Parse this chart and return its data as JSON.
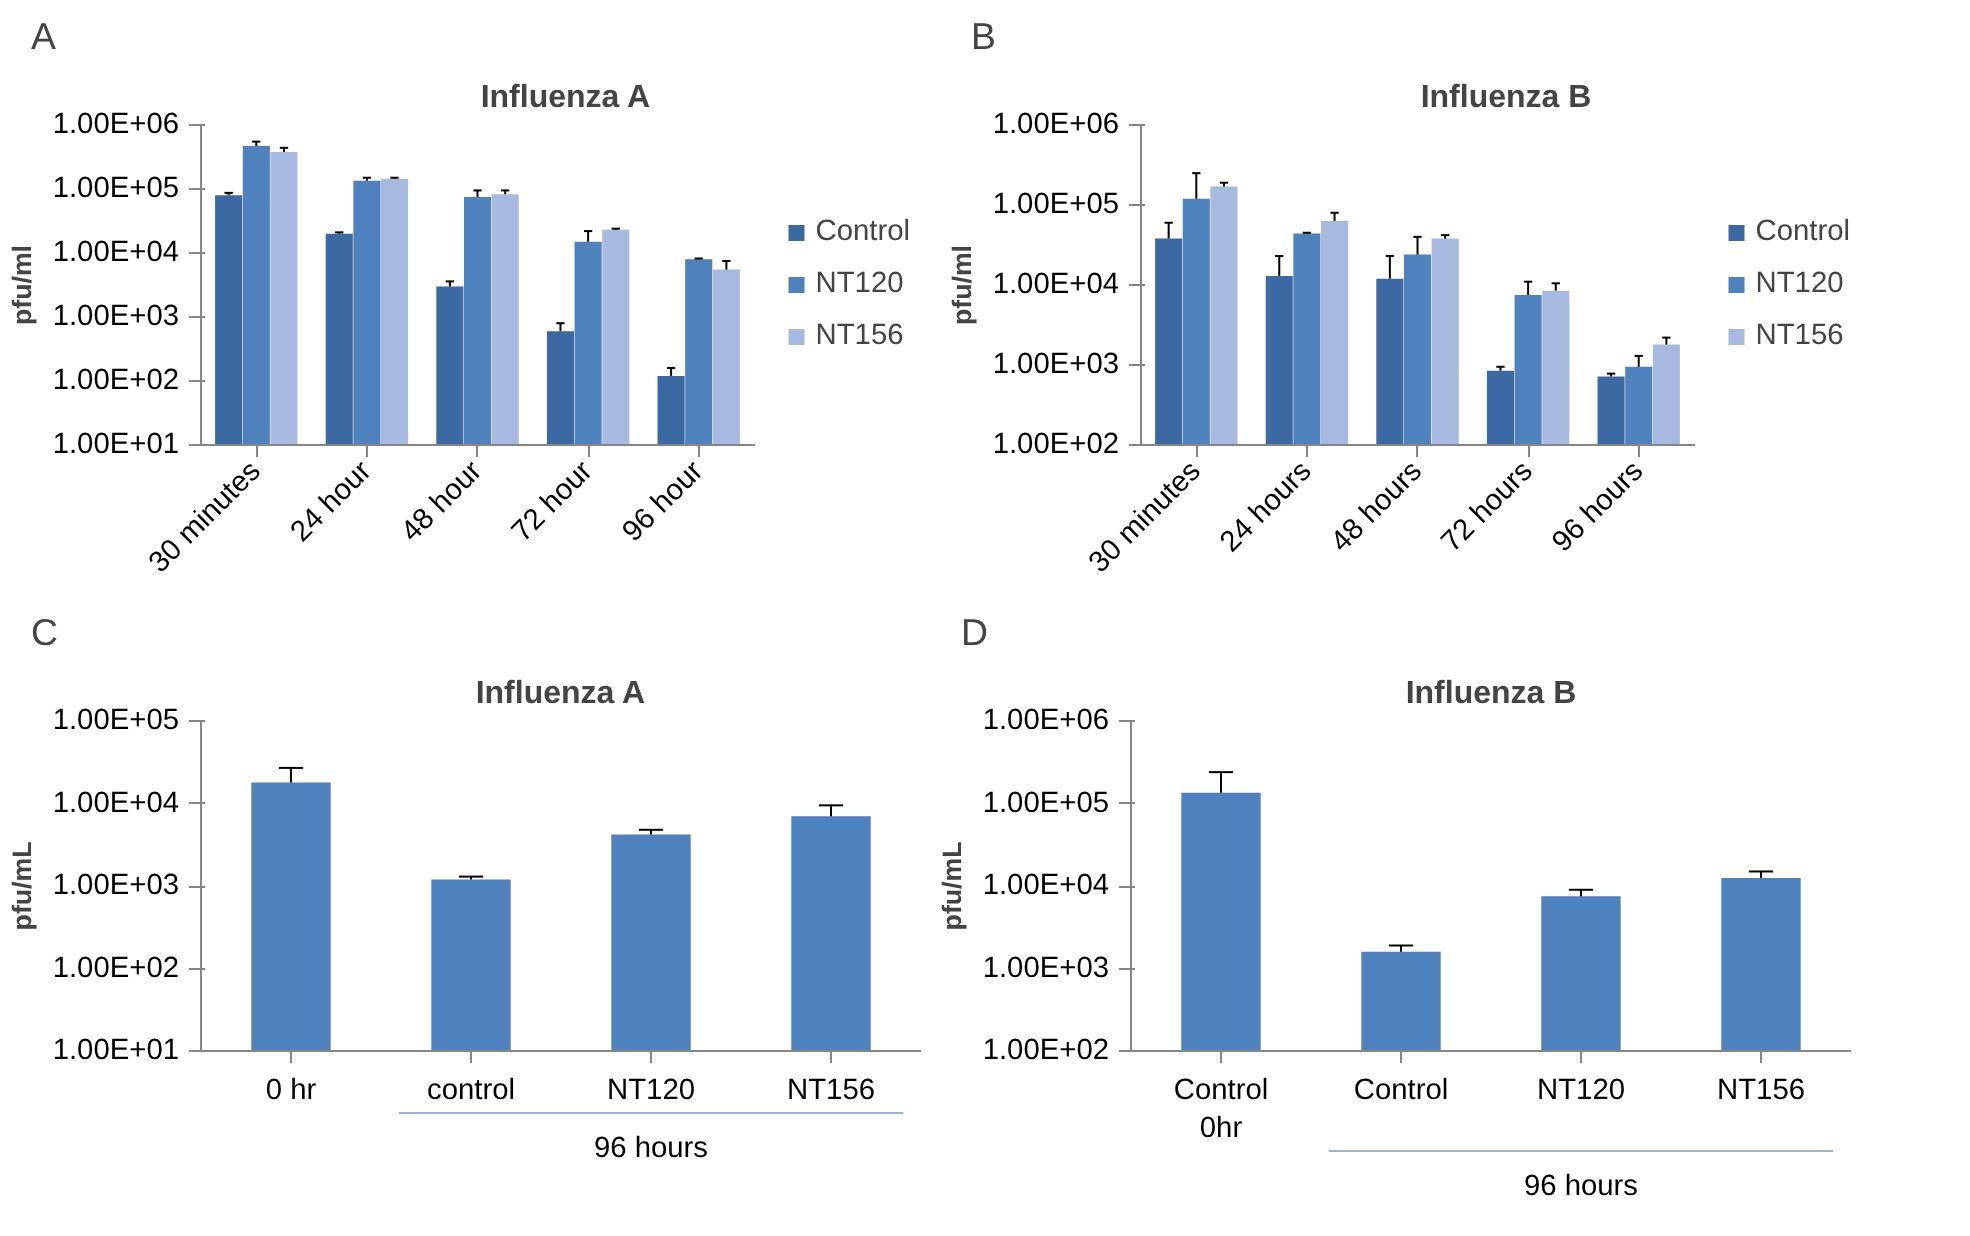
{
  "chart_data": [
    {
      "type": "bar",
      "title": "Influenza A",
      "ylabel": "pfu/ml",
      "annotations": [
        "A"
      ],
      "categories": [
        "30 minutes",
        "24 hour",
        "48 hour",
        "72 hour",
        "96 hour"
      ],
      "log": "y",
      "legend": "right",
      "grid": false,
      "ylim": [
        10,
        1000000
      ],
      "yticks": [
        {
          "value": 10,
          "label": "1.00E+01"
        },
        {
          "value": 100,
          "label": "1.00E+02"
        },
        {
          "value": 1000,
          "label": "1.00E+03"
        },
        {
          "value": 10000,
          "label": "1.00E+04"
        },
        {
          "value": 100000,
          "label": "1.00E+05"
        },
        {
          "value": 1000000,
          "label": "1.00E+06"
        }
      ],
      "series": [
        {
          "name": "Control",
          "color": "#3d69a3",
          "values": [
            80000,
            20000,
            3000,
            600,
            120
          ],
          "errors": [
            [
              80000,
              87000
            ],
            [
              20000,
              21000
            ],
            [
              3000,
              3600
            ],
            [
              600,
              800
            ],
            [
              120,
              160
            ]
          ]
        },
        {
          "name": "NT120",
          "color": "#4f81bd",
          "values": [
            470000,
            135000,
            75000,
            15000,
            8000
          ],
          "errors": [
            [
              470000,
              550000
            ],
            [
              135000,
              150000
            ],
            [
              75000,
              95000
            ],
            [
              15000,
              22000
            ],
            [
              8000,
              8200
            ]
          ]
        },
        {
          "name": "NT156",
          "color": "#a7b9de",
          "values": [
            380000,
            145000,
            83000,
            23000,
            5500
          ],
          "errors": [
            [
              380000,
              440000
            ],
            [
              145000,
              150000
            ],
            [
              83000,
              95000
            ],
            [
              23000,
              24000
            ],
            [
              5500,
              7500
            ]
          ]
        }
      ]
    },
    {
      "type": "bar",
      "title": "Influenza B",
      "ylabel": "pfu/ml",
      "annotations": [
        "B"
      ],
      "categories": [
        "30 minutes",
        "24 hours",
        "48 hours",
        "72 hours",
        "96 hours"
      ],
      "log": "y",
      "legend": "right",
      "grid": false,
      "ylim": [
        100,
        1000000
      ],
      "yticks": [
        {
          "value": 100,
          "label": "1.00E+02"
        },
        {
          "value": 1000,
          "label": "1.00E+03"
        },
        {
          "value": 10000,
          "label": "1.00E+04"
        },
        {
          "value": 100000,
          "label": "1.00E+05"
        },
        {
          "value": 1000000,
          "label": "1.00E+06"
        }
      ],
      "series": [
        {
          "name": "Control",
          "color": "#3d69a3",
          "values": [
            38000,
            13000,
            12000,
            850,
            720
          ],
          "errors": [
            [
              38000,
              60000
            ],
            [
              13000,
              23000
            ],
            [
              12000,
              23000
            ],
            [
              850,
              950
            ],
            [
              720,
              780
            ]
          ]
        },
        {
          "name": "NT120",
          "color": "#4f81bd",
          "values": [
            120000,
            44000,
            24000,
            7500,
            950
          ],
          "errors": [
            [
              120000,
              250000
            ],
            [
              44000,
              45000
            ],
            [
              24000,
              40000
            ],
            [
              7500,
              11000
            ],
            [
              950,
              1300
            ]
          ]
        },
        {
          "name": "NT156",
          "color": "#a7b9de",
          "values": [
            170000,
            63000,
            38000,
            8500,
            1800
          ],
          "errors": [
            [
              170000,
              190000
            ],
            [
              63000,
              80000
            ],
            [
              38000,
              42000
            ],
            [
              8500,
              10500
            ],
            [
              1800,
              2200
            ]
          ]
        }
      ]
    },
    {
      "type": "bar",
      "title": "Influenza A",
      "ylabel": "pfu/mL",
      "annotations": [
        "C",
        "96 hours"
      ],
      "categories": [
        "0 hr",
        "control",
        "NT120",
        "NT156"
      ],
      "log": "y",
      "grid": false,
      "ylim": [
        10,
        100000
      ],
      "yticks": [
        {
          "value": 10,
          "label": "1.00E+01"
        },
        {
          "value": 100,
          "label": "1.00E+02"
        },
        {
          "value": 1000,
          "label": "1.00E+03"
        },
        {
          "value": 10000,
          "label": "1.00E+04"
        },
        {
          "value": 100000,
          "label": "1.00E+05"
        }
      ],
      "series": [
        {
          "color": "#4f81bd",
          "values": [
            18000,
            1200,
            4200,
            7000
          ],
          "errors": [
            [
              18000,
              27000
            ],
            [
              1200,
              1300
            ],
            [
              4200,
              4800
            ],
            [
              7000,
              9500
            ]
          ]
        }
      ]
    },
    {
      "type": "bar",
      "title": "Influenza B",
      "ylabel": "pfu/mL",
      "annotations": [
        "D",
        "96 hours"
      ],
      "categories": [
        "Control\n0hr",
        "Control",
        "NT120",
        "NT156"
      ],
      "log": "y",
      "grid": false,
      "ylim": [
        100,
        1000000
      ],
      "yticks": [
        {
          "value": 100,
          "label": "1.00E+02"
        },
        {
          "value": 1000,
          "label": "1.00E+03"
        },
        {
          "value": 10000,
          "label": "1.00E+04"
        },
        {
          "value": 100000,
          "label": "1.00E+05"
        },
        {
          "value": 1000000,
          "label": "1.00E+06"
        }
      ],
      "series": [
        {
          "color": "#4f81bd",
          "values": [
            135000,
            1600,
            7500,
            12500
          ],
          "errors": [
            [
              135000,
              240000
            ],
            [
              1600,
              1900
            ],
            [
              7500,
              9000
            ],
            [
              12500,
              15000
            ]
          ]
        }
      ]
    }
  ]
}
